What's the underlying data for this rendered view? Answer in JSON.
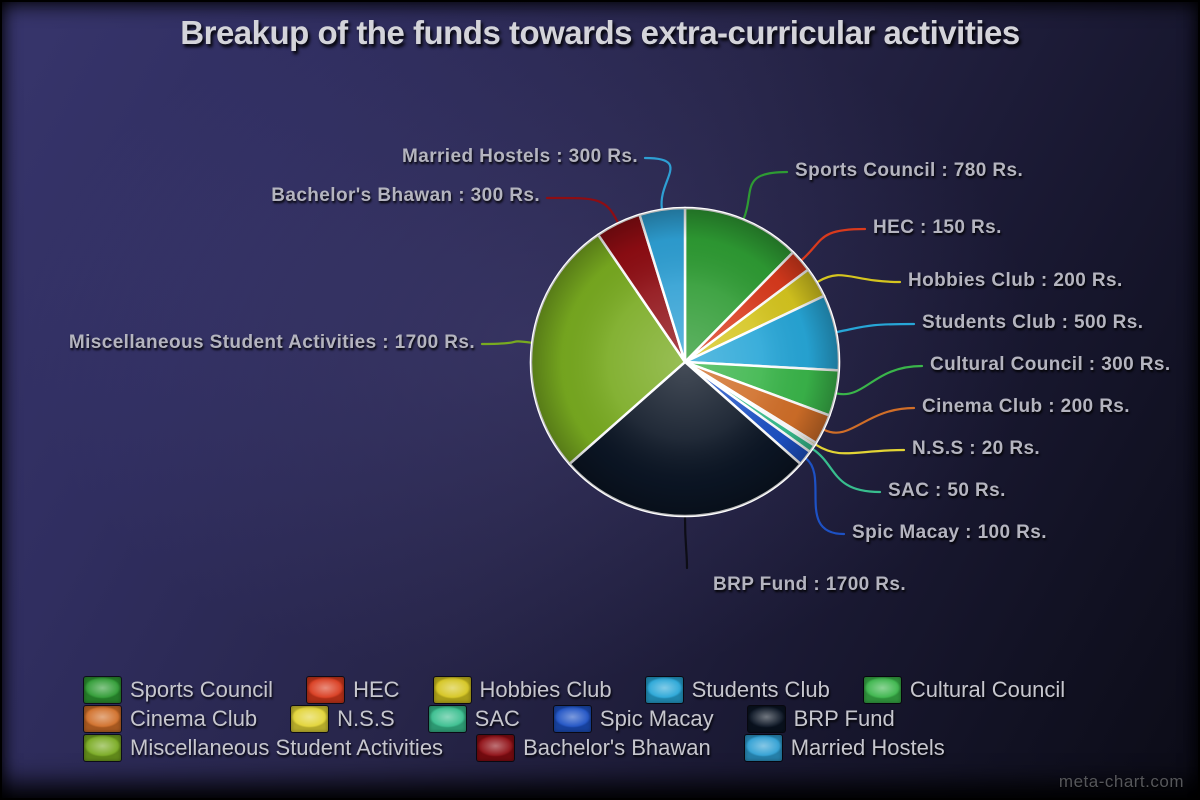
{
  "title": "Breakup of the funds towards extra-curricular activities",
  "watermark": "meta-chart.com",
  "theme": {
    "background_top": "#33315f",
    "background_bottom": "#0b0b16",
    "label_text": "#b4b4bf",
    "title_text": "#d4d4da",
    "slice_border": "#ffffff"
  },
  "chart_data": {
    "type": "pie",
    "title": "Breakup of the funds towards extra-curricular activities",
    "unit": "Rs.",
    "legend_position": "bottom",
    "start_angle_deg": 0,
    "direction": "clockwise",
    "slices": [
      {
        "label": "Sports Council",
        "value": 780,
        "color": "#2E9B33",
        "callout": "Sports Council : 780 Rs."
      },
      {
        "label": "HEC",
        "value": 150,
        "color": "#D93A1D",
        "callout": "HEC : 150 Rs."
      },
      {
        "label": "Hobbies Club",
        "value": 200,
        "color": "#D5C51F",
        "callout": "Hobbies Club : 200 Rs."
      },
      {
        "label": "Students Club",
        "value": 500,
        "color": "#27A6D7",
        "callout": "Students Club : 500 Rs."
      },
      {
        "label": "Cultural Council",
        "value": 300,
        "color": "#3AB54A",
        "callout": "Cultural Council : 300 Rs."
      },
      {
        "label": "Cinema Club",
        "value": 200,
        "color": "#D06E28",
        "callout": "Cinema Club : 200 Rs."
      },
      {
        "label": "N.S.S",
        "value": 20,
        "color": "#E2D435",
        "callout": "N.S.S : 20 Rs."
      },
      {
        "label": "SAC",
        "value": 50,
        "color": "#38BE8E",
        "callout": "SAC : 50 Rs."
      },
      {
        "label": "Spic Macay",
        "value": 100,
        "color": "#1D51C4",
        "callout": "Spic Macay : 100 Rs."
      },
      {
        "label": "BRP Fund",
        "value": 1700,
        "color": "#0B1524",
        "callout": "BRP Fund : 1700 Rs."
      },
      {
        "label": "Miscellaneous Student Activities",
        "value": 1700,
        "color": "#78AA20",
        "callout": "Miscellaneous Student Activities : 1700 Rs."
      },
      {
        "label": "Bachelor's Bhawan",
        "value": 300,
        "color": "#8E0D13",
        "callout": "Bachelor's Bhawan : 300 Rs."
      },
      {
        "label": "Married Hostels",
        "value": 300,
        "color": "#2E9FD3",
        "callout": "Married Hostels : 300 Rs."
      }
    ]
  }
}
